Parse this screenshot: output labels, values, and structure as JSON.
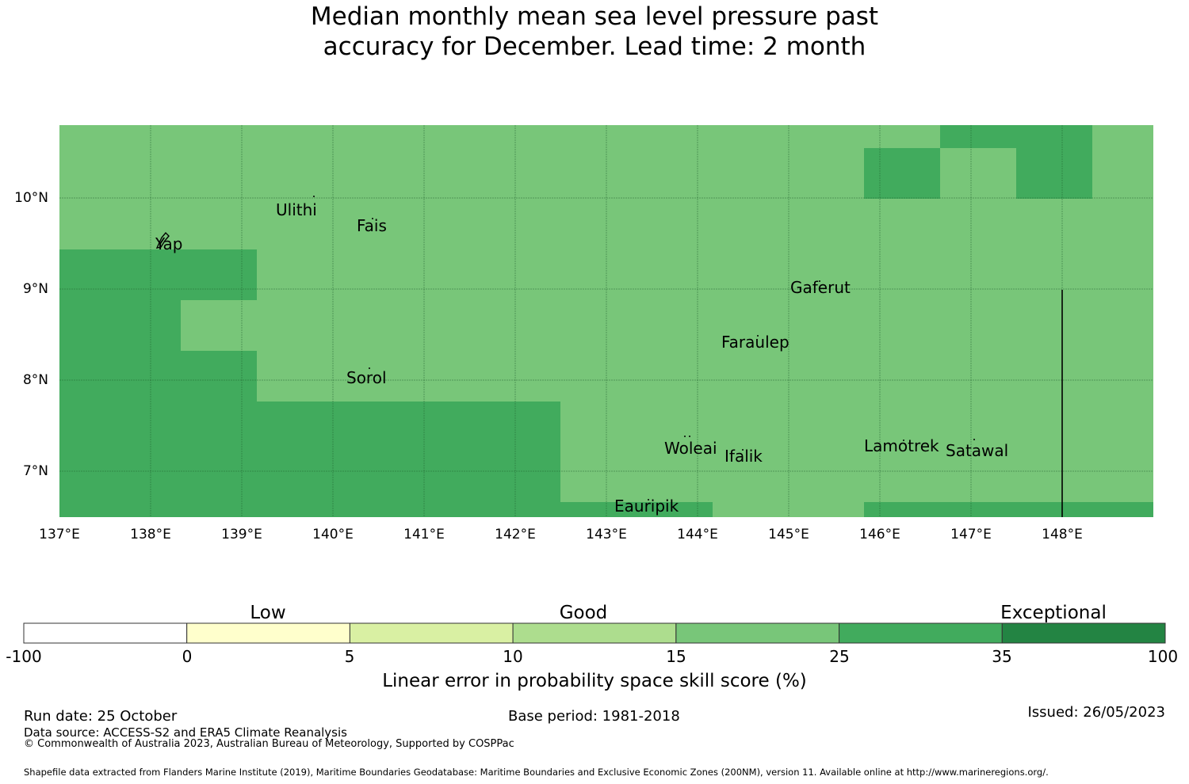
{
  "title": {
    "line1": "Median monthly mean sea level pressure past",
    "line2": "accuracy for December. Lead time: 2 month"
  },
  "map": {
    "x_ticks": [
      "137°E",
      "138°E",
      "139°E",
      "140°E",
      "141°E",
      "142°E",
      "143°E",
      "144°E",
      "145°E",
      "146°E",
      "147°E",
      "148°E"
    ],
    "y_ticks": [
      "10°N",
      "9°N",
      "8°N",
      "7°N"
    ],
    "places": [
      "Ulithi",
      "Fais",
      "Yap",
      "Gaferut",
      "Faraulep",
      "Sorol",
      "Woleai",
      "Ifalik",
      "Lamotrek",
      "Satawal",
      "Eauripik"
    ]
  },
  "legend": {
    "categories": [
      "Low",
      "Good",
      "Exceptional"
    ],
    "bounds": [
      "-100",
      "0",
      "5",
      "10",
      "15",
      "25",
      "35",
      "100"
    ],
    "colors": [
      "#ffffff",
      "#ffffcc",
      "#d9f0a3",
      "#addd8e",
      "#78c679",
      "#41ab5d",
      "#238443"
    ],
    "title": "Linear error in probability space skill score (%)"
  },
  "footer": {
    "run_date": "Run date: 25 October",
    "base_period": "Base period: 1981-2018",
    "issued": "Issued: 26/05/2023",
    "data_source": "Data source: ACCESS-S2 and ERA5 Climate Reanalysis",
    "copyright": "© Commonwealth of Australia 2023, Australian Bureau of Meteorology, Supported by COSPPac",
    "shapefile": "Shapefile data extracted from Flanders Marine Institute (2019), Maritime Boundaries Geodatabase: Maritime Boundaries and Exclusive Economic Zones (200NM), version 11. Available online at http://www.marineregions.org/."
  }
}
